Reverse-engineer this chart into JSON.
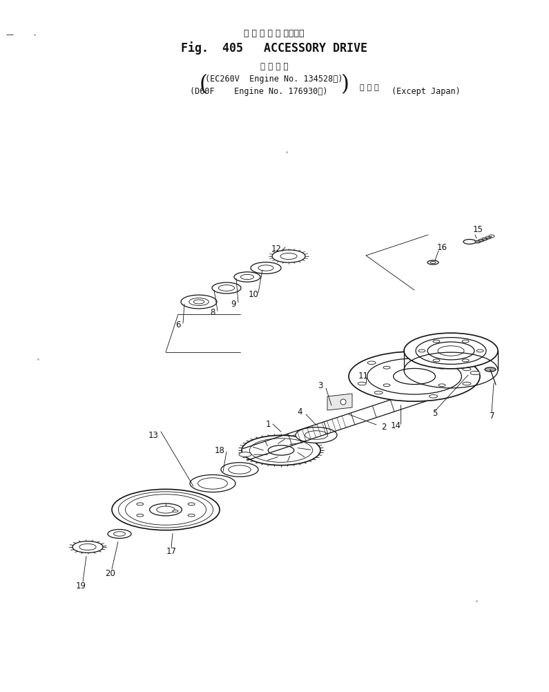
{
  "title_jp": "ア ク セ サ リ ドライブ",
  "title_en": "Fig.  405   ACCESSORY DRIVE",
  "subtitle_jp": "通 用 号 機",
  "line1": "(EC260V  Engine No. 134528～)",
  "line2_left": "(D60F    Engine No. 176930～)",
  "line2_jp": "海 外 向",
  "line2_right": "(Except Japan)",
  "bg_color": "#ffffff",
  "text_color": "#000000",
  "drawing_color": "#111111",
  "lw_thin": 0.6,
  "lw_med": 0.9,
  "lw_thick": 1.2
}
